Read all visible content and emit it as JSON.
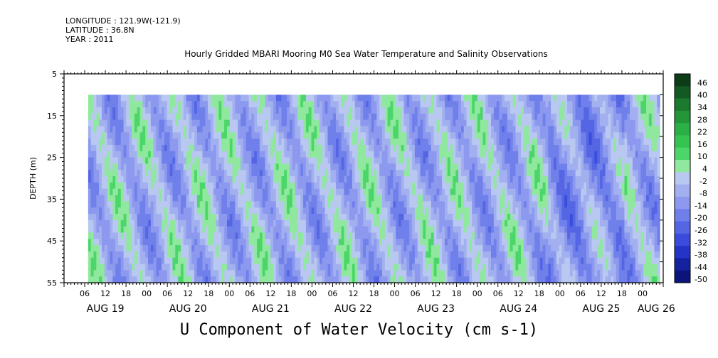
{
  "header": {
    "longitude": "LONGITUDE : 121.9W(-121.9)",
    "latitude": "LATITUDE : 36.8N",
    "year": "YEAR : 2011",
    "title": "Hourly Gridded MBARI Mooring M0 Sea Water Temperature and Salinity Observations"
  },
  "chart_data": {
    "type": "heatmap",
    "title": "U Component of Water Velocity (cm s-1)",
    "ylabel": "DEPTH (m)",
    "ylim": [
      55,
      5
    ],
    "yticks": [
      5,
      15,
      25,
      35,
      45,
      55
    ],
    "xlim": [
      0,
      174
    ],
    "x_hour_labels": [
      "06",
      "12",
      "18",
      "00",
      "06",
      "12",
      "18",
      "00",
      "06",
      "12",
      "18",
      "00",
      "06",
      "12",
      "18",
      "00",
      "06",
      "12",
      "18",
      "00",
      "06",
      "12",
      "18",
      "00",
      "06",
      "12",
      "18",
      "00"
    ],
    "x_day_labels": [
      {
        "label": "AUG 19",
        "hour": 12
      },
      {
        "label": "AUG 20",
        "hour": 36
      },
      {
        "label": "AUG 21",
        "hour": 60
      },
      {
        "label": "AUG 22",
        "hour": 84
      },
      {
        "label": "AUG 23",
        "hour": 108
      },
      {
        "label": "AUG 24",
        "hour": 132
      },
      {
        "label": "AUG 25",
        "hour": 156
      },
      {
        "label": "AUG 26",
        "hour": 172
      }
    ],
    "data_depth_range": [
      10,
      55
    ],
    "data_time_start_hour": 7,
    "colorbar": {
      "labels": [
        "46",
        "40",
        "34",
        "28",
        "22",
        "16",
        "10",
        "4",
        "-2",
        "-8",
        "-14",
        "-20",
        "-26",
        "-32",
        "-38",
        "-44",
        "-50"
      ],
      "colors": [
        "#0d3d17",
        "#135a22",
        "#1b7a2e",
        "#23963a",
        "#2bb046",
        "#35c451",
        "#4cd66a",
        "#8fe89e",
        "#b8c8f0",
        "#a2b0f0",
        "#8c99ee",
        "#7080ea",
        "#5566e4",
        "#3a4cdc",
        "#2434c6",
        "#1522a0",
        "#0b1478"
      ]
    }
  }
}
